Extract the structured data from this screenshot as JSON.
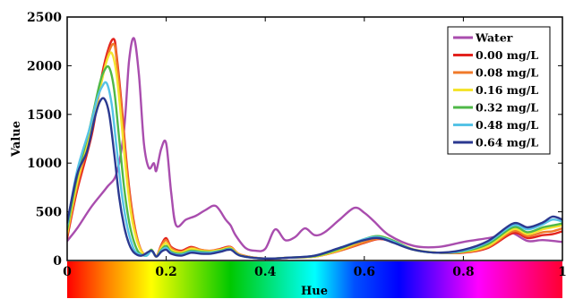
{
  "chart_data": {
    "type": "line",
    "xlabel": "Hue",
    "ylabel": "Value",
    "xlim": [
      0,
      1
    ],
    "ylim": [
      0,
      2500
    ],
    "x_ticks": [
      "0",
      "0.2",
      "0.4",
      "0.6",
      "0.8",
      "1"
    ],
    "y_ticks": [
      "0",
      "500",
      "1000",
      "1500",
      "2000",
      "2500"
    ],
    "legend_position": "top-right",
    "x_axis_color_bar": "hue spectrum (red-yellow-green-cyan-blue-magenta-red)",
    "series": [
      {
        "name": "Water",
        "color": "#a94dae",
        "points": [
          [
            0,
            200
          ],
          [
            0.02,
            330
          ],
          [
            0.05,
            560
          ],
          [
            0.08,
            750
          ],
          [
            0.1,
            900
          ],
          [
            0.115,
            1350
          ],
          [
            0.125,
            2050
          ],
          [
            0.135,
            2280
          ],
          [
            0.145,
            1900
          ],
          [
            0.155,
            1200
          ],
          [
            0.165,
            950
          ],
          [
            0.175,
            1000
          ],
          [
            0.18,
            920
          ],
          [
            0.19,
            1150
          ],
          [
            0.2,
            1200
          ],
          [
            0.21,
            700
          ],
          [
            0.22,
            360
          ],
          [
            0.24,
            420
          ],
          [
            0.26,
            460
          ],
          [
            0.28,
            520
          ],
          [
            0.3,
            560
          ],
          [
            0.32,
            420
          ],
          [
            0.33,
            360
          ],
          [
            0.34,
            260
          ],
          [
            0.36,
            130
          ],
          [
            0.38,
            100
          ],
          [
            0.4,
            120
          ],
          [
            0.42,
            320
          ],
          [
            0.44,
            210
          ],
          [
            0.46,
            240
          ],
          [
            0.48,
            330
          ],
          [
            0.5,
            260
          ],
          [
            0.52,
            290
          ],
          [
            0.55,
            420
          ],
          [
            0.58,
            540
          ],
          [
            0.6,
            490
          ],
          [
            0.62,
            400
          ],
          [
            0.65,
            260
          ],
          [
            0.7,
            150
          ],
          [
            0.75,
            140
          ],
          [
            0.8,
            190
          ],
          [
            0.85,
            230
          ],
          [
            0.88,
            260
          ],
          [
            0.9,
            280
          ],
          [
            0.93,
            200
          ],
          [
            0.96,
            210
          ],
          [
            1.0,
            190
          ]
        ]
      },
      {
        "name": "0.00 mg/L",
        "color": "#e3231e",
        "points": [
          [
            0,
            230
          ],
          [
            0.02,
            720
          ],
          [
            0.05,
            1300
          ],
          [
            0.07,
            1900
          ],
          [
            0.085,
            2200
          ],
          [
            0.095,
            2270
          ],
          [
            0.1,
            2100
          ],
          [
            0.11,
            1600
          ],
          [
            0.12,
            1000
          ],
          [
            0.13,
            550
          ],
          [
            0.14,
            260
          ],
          [
            0.15,
            100
          ],
          [
            0.16,
            60
          ],
          [
            0.17,
            110
          ],
          [
            0.18,
            40
          ],
          [
            0.19,
            160
          ],
          [
            0.2,
            230
          ],
          [
            0.21,
            140
          ],
          [
            0.23,
            100
          ],
          [
            0.25,
            140
          ],
          [
            0.27,
            110
          ],
          [
            0.29,
            100
          ],
          [
            0.31,
            120
          ],
          [
            0.33,
            140
          ],
          [
            0.35,
            60
          ],
          [
            0.4,
            20
          ],
          [
            0.45,
            30
          ],
          [
            0.5,
            40
          ],
          [
            0.55,
            100
          ],
          [
            0.6,
            180
          ],
          [
            0.63,
            220
          ],
          [
            0.66,
            190
          ],
          [
            0.7,
            110
          ],
          [
            0.75,
            80
          ],
          [
            0.8,
            80
          ],
          [
            0.85,
            130
          ],
          [
            0.9,
            280
          ],
          [
            0.93,
            230
          ],
          [
            0.96,
            260
          ],
          [
            0.98,
            270
          ],
          [
            1.0,
            300
          ]
        ]
      },
      {
        "name": "0.08 mg/L",
        "color": "#f07a2a",
        "points": [
          [
            0,
            260
          ],
          [
            0.02,
            760
          ],
          [
            0.05,
            1350
          ],
          [
            0.07,
            1850
          ],
          [
            0.085,
            2150
          ],
          [
            0.095,
            2220
          ],
          [
            0.1,
            2050
          ],
          [
            0.11,
            1550
          ],
          [
            0.12,
            950
          ],
          [
            0.13,
            520
          ],
          [
            0.14,
            250
          ],
          [
            0.15,
            100
          ],
          [
            0.16,
            60
          ],
          [
            0.17,
            110
          ],
          [
            0.18,
            40
          ],
          [
            0.19,
            150
          ],
          [
            0.2,
            210
          ],
          [
            0.21,
            130
          ],
          [
            0.23,
            90
          ],
          [
            0.25,
            130
          ],
          [
            0.27,
            110
          ],
          [
            0.29,
            100
          ],
          [
            0.31,
            115
          ],
          [
            0.33,
            135
          ],
          [
            0.35,
            60
          ],
          [
            0.4,
            20
          ],
          [
            0.45,
            30
          ],
          [
            0.5,
            40
          ],
          [
            0.55,
            100
          ],
          [
            0.6,
            185
          ],
          [
            0.63,
            225
          ],
          [
            0.66,
            190
          ],
          [
            0.7,
            110
          ],
          [
            0.75,
            80
          ],
          [
            0.8,
            85
          ],
          [
            0.85,
            140
          ],
          [
            0.9,
            300
          ],
          [
            0.93,
            250
          ],
          [
            0.96,
            290
          ],
          [
            0.98,
            300
          ],
          [
            1.0,
            330
          ]
        ]
      },
      {
        "name": "0.16 mg/L",
        "color": "#f4e42e",
        "points": [
          [
            0,
            280
          ],
          [
            0.02,
            800
          ],
          [
            0.05,
            1400
          ],
          [
            0.07,
            1850
          ],
          [
            0.08,
            2050
          ],
          [
            0.09,
            2130
          ],
          [
            0.1,
            1900
          ],
          [
            0.11,
            1400
          ],
          [
            0.12,
            850
          ],
          [
            0.13,
            450
          ],
          [
            0.14,
            220
          ],
          [
            0.15,
            90
          ],
          [
            0.16,
            60
          ],
          [
            0.17,
            110
          ],
          [
            0.18,
            40
          ],
          [
            0.19,
            130
          ],
          [
            0.2,
            180
          ],
          [
            0.21,
            110
          ],
          [
            0.23,
            80
          ],
          [
            0.25,
            120
          ],
          [
            0.27,
            100
          ],
          [
            0.29,
            95
          ],
          [
            0.31,
            110
          ],
          [
            0.33,
            130
          ],
          [
            0.35,
            55
          ],
          [
            0.4,
            20
          ],
          [
            0.45,
            30
          ],
          [
            0.5,
            40
          ],
          [
            0.55,
            110
          ],
          [
            0.6,
            210
          ],
          [
            0.63,
            250
          ],
          [
            0.66,
            200
          ],
          [
            0.7,
            115
          ],
          [
            0.75,
            80
          ],
          [
            0.8,
            90
          ],
          [
            0.85,
            150
          ],
          [
            0.9,
            320
          ],
          [
            0.93,
            270
          ],
          [
            0.96,
            320
          ],
          [
            0.98,
            340
          ],
          [
            1.0,
            360
          ]
        ]
      },
      {
        "name": "0.32 mg/L",
        "color": "#4fb848",
        "points": [
          [
            0,
            320
          ],
          [
            0.02,
            860
          ],
          [
            0.045,
            1350
          ],
          [
            0.065,
            1800
          ],
          [
            0.075,
            1950
          ],
          [
            0.085,
            1980
          ],
          [
            0.095,
            1750
          ],
          [
            0.105,
            1250
          ],
          [
            0.115,
            750
          ],
          [
            0.125,
            400
          ],
          [
            0.135,
            190
          ],
          [
            0.145,
            80
          ],
          [
            0.16,
            50
          ],
          [
            0.17,
            110
          ],
          [
            0.18,
            40
          ],
          [
            0.19,
            110
          ],
          [
            0.2,
            150
          ],
          [
            0.21,
            90
          ],
          [
            0.23,
            70
          ],
          [
            0.25,
            100
          ],
          [
            0.27,
            90
          ],
          [
            0.29,
            85
          ],
          [
            0.31,
            100
          ],
          [
            0.33,
            120
          ],
          [
            0.35,
            50
          ],
          [
            0.4,
            20
          ],
          [
            0.45,
            30
          ],
          [
            0.5,
            45
          ],
          [
            0.55,
            120
          ],
          [
            0.6,
            220
          ],
          [
            0.63,
            250
          ],
          [
            0.66,
            200
          ],
          [
            0.7,
            110
          ],
          [
            0.75,
            80
          ],
          [
            0.8,
            95
          ],
          [
            0.85,
            170
          ],
          [
            0.9,
            340
          ],
          [
            0.93,
            290
          ],
          [
            0.96,
            340
          ],
          [
            0.98,
            360
          ],
          [
            1.0,
            380
          ]
        ]
      },
      {
        "name": "0.48 mg/L",
        "color": "#56c3e6",
        "points": [
          [
            0,
            360
          ],
          [
            0.02,
            920
          ],
          [
            0.045,
            1350
          ],
          [
            0.06,
            1650
          ],
          [
            0.07,
            1780
          ],
          [
            0.08,
            1820
          ],
          [
            0.09,
            1600
          ],
          [
            0.1,
            1150
          ],
          [
            0.11,
            700
          ],
          [
            0.12,
            380
          ],
          [
            0.13,
            180
          ],
          [
            0.14,
            80
          ],
          [
            0.16,
            50
          ],
          [
            0.17,
            100
          ],
          [
            0.18,
            40
          ],
          [
            0.19,
            100
          ],
          [
            0.2,
            130
          ],
          [
            0.21,
            80
          ],
          [
            0.23,
            60
          ],
          [
            0.25,
            90
          ],
          [
            0.27,
            80
          ],
          [
            0.29,
            80
          ],
          [
            0.31,
            95
          ],
          [
            0.33,
            115
          ],
          [
            0.35,
            50
          ],
          [
            0.4,
            20
          ],
          [
            0.45,
            30
          ],
          [
            0.5,
            50
          ],
          [
            0.55,
            130
          ],
          [
            0.6,
            220
          ],
          [
            0.63,
            240
          ],
          [
            0.66,
            190
          ],
          [
            0.7,
            110
          ],
          [
            0.75,
            80
          ],
          [
            0.8,
            100
          ],
          [
            0.85,
            190
          ],
          [
            0.9,
            360
          ],
          [
            0.93,
            320
          ],
          [
            0.96,
            370
          ],
          [
            0.98,
            420
          ],
          [
            1.0,
            400
          ]
        ]
      },
      {
        "name": "0.64 mg/L",
        "color": "#2b3990",
        "points": [
          [
            0,
            390
          ],
          [
            0.02,
            880
          ],
          [
            0.04,
            1120
          ],
          [
            0.055,
            1450
          ],
          [
            0.065,
            1620
          ],
          [
            0.075,
            1660
          ],
          [
            0.085,
            1500
          ],
          [
            0.095,
            1100
          ],
          [
            0.105,
            650
          ],
          [
            0.115,
            350
          ],
          [
            0.125,
            170
          ],
          [
            0.135,
            80
          ],
          [
            0.15,
            50
          ],
          [
            0.17,
            100
          ],
          [
            0.18,
            40
          ],
          [
            0.19,
            90
          ],
          [
            0.2,
            110
          ],
          [
            0.21,
            70
          ],
          [
            0.23,
            50
          ],
          [
            0.25,
            80
          ],
          [
            0.27,
            70
          ],
          [
            0.29,
            70
          ],
          [
            0.31,
            90
          ],
          [
            0.33,
            110
          ],
          [
            0.35,
            50
          ],
          [
            0.4,
            20
          ],
          [
            0.45,
            30
          ],
          [
            0.5,
            50
          ],
          [
            0.55,
            130
          ],
          [
            0.6,
            210
          ],
          [
            0.63,
            230
          ],
          [
            0.66,
            180
          ],
          [
            0.7,
            110
          ],
          [
            0.75,
            80
          ],
          [
            0.8,
            110
          ],
          [
            0.85,
            200
          ],
          [
            0.9,
            380
          ],
          [
            0.93,
            340
          ],
          [
            0.96,
            390
          ],
          [
            0.98,
            450
          ],
          [
            1.0,
            420
          ]
        ]
      }
    ]
  }
}
